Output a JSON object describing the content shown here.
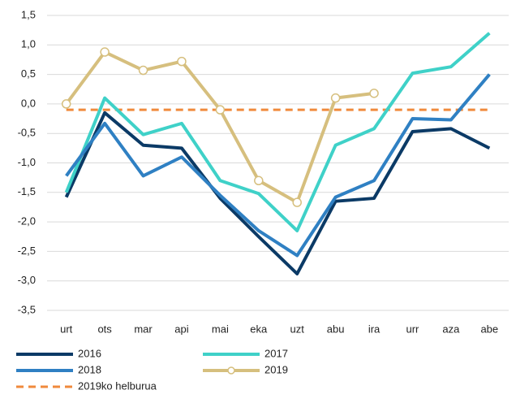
{
  "chart_data": {
    "type": "line",
    "categories": [
      "urt",
      "ots",
      "mar",
      "api",
      "mai",
      "eka",
      "uzt",
      "abu",
      "ira",
      "urr",
      "aza",
      "abe"
    ],
    "ylim": [
      -3.5,
      1.5
    ],
    "yticks": [
      {
        "value": 1.5,
        "label": "1,5"
      },
      {
        "value": 1.0,
        "label": "1,0"
      },
      {
        "value": 0.5,
        "label": "0,5"
      },
      {
        "value": 0.0,
        "label": "0,0"
      },
      {
        "value": -0.5,
        "label": "-0,5"
      },
      {
        "value": -1.0,
        "label": "-1,0"
      },
      {
        "value": -1.5,
        "label": "-1,5"
      },
      {
        "value": -2.0,
        "label": "-2,0"
      },
      {
        "value": -2.5,
        "label": "-2,5"
      },
      {
        "value": -3.0,
        "label": "-3,0"
      },
      {
        "value": -3.5,
        "label": "-3,5"
      }
    ],
    "grid": true,
    "legend": "bottom",
    "series": [
      {
        "name": "2016",
        "color": "#0b3a66",
        "values": [
          -1.58,
          -0.15,
          -0.7,
          -0.75,
          -1.6,
          -2.25,
          -2.88,
          -1.65,
          -1.6,
          -0.47,
          -0.42,
          -0.75
        ]
      },
      {
        "name": "2017",
        "color": "#3fd1c8",
        "values": [
          -1.5,
          0.1,
          -0.52,
          -0.33,
          -1.3,
          -1.52,
          -2.15,
          -0.7,
          -0.42,
          0.52,
          0.63,
          1.2
        ]
      },
      {
        "name": "2018",
        "color": "#2f80c3",
        "values": [
          -1.22,
          -0.33,
          -1.22,
          -0.9,
          -1.55,
          -2.15,
          -2.57,
          -1.58,
          -1.3,
          -0.25,
          -0.27,
          0.5
        ]
      },
      {
        "name": "2019",
        "color": "#d6bf7e",
        "marker": "circle",
        "values": [
          0,
          0.88,
          0.57,
          0.72,
          -0.1,
          -1.3,
          -1.67,
          0.1,
          0.18,
          null,
          null,
          null
        ]
      },
      {
        "name": "2019ko helburua",
        "color": "#f08a3c",
        "dashed": true,
        "values": [
          -0.1,
          -0.1,
          -0.1,
          -0.1,
          -0.1,
          -0.1,
          -0.1,
          -0.1,
          -0.1,
          -0.1,
          -0.1,
          -0.1
        ]
      }
    ]
  }
}
